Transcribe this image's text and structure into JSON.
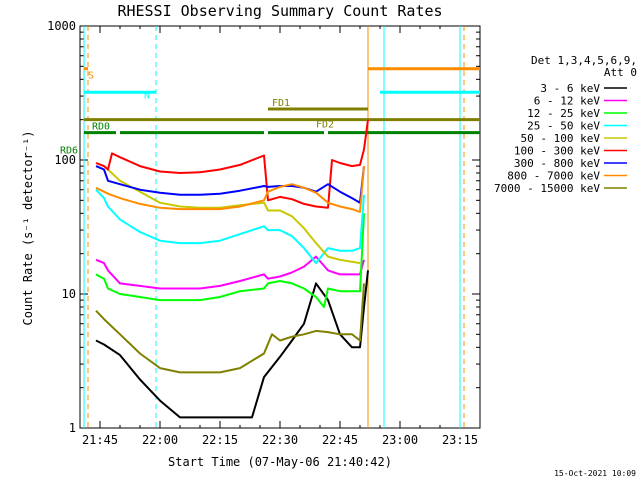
{
  "chart_data": {
    "type": "line",
    "title": "RHESSI Observing Summary Count Rates",
    "xlabel": "Start Time (07-May-06 21:40:42)",
    "ylabel": "Count Rate (s⁻¹ detector⁻¹)",
    "ylog": true,
    "ylim": [
      1,
      1000
    ],
    "xlim": [
      "21:40",
      "23:20"
    ],
    "x_ticks": [
      "21:45",
      "22:00",
      "22:15",
      "22:30",
      "22:45",
      "23:00",
      "23:15"
    ],
    "y_ticks": [
      "1",
      "10",
      "100",
      "1000"
    ],
    "legend_title": [
      "Det 1,3,4,5,6,9,",
      "Att 0"
    ],
    "legend_position": "right",
    "series": [
      {
        "name": "3 - 6 keV",
        "color": "#000000",
        "x": [
          "21:44",
          "21:46",
          "21:50",
          "21:55",
          "22:00",
          "22:05",
          "22:10",
          "22:15",
          "22:20",
          "22:23",
          "22:26",
          "22:30",
          "22:33",
          "22:36",
          "22:39",
          "22:42",
          "22:45",
          "22:48",
          "22:50",
          "22:51",
          "22:52"
        ],
        "y": [
          4.5,
          4.2,
          3.5,
          2.3,
          1.6,
          1.2,
          1.2,
          1.2,
          1.2,
          1.2,
          2.4,
          3.4,
          4.5,
          6,
          12,
          9,
          5,
          4,
          4,
          8,
          15
        ]
      },
      {
        "name": "6 - 12 keV",
        "color": "#ff00ff",
        "x": [
          "21:44",
          "21:46",
          "21:47",
          "21:50",
          "21:55",
          "22:00",
          "22:05",
          "22:10",
          "22:15",
          "22:20",
          "22:26",
          "22:27",
          "22:30",
          "22:33",
          "22:36",
          "22:39",
          "22:42",
          "22:45",
          "22:48",
          "22:50",
          "22:51"
        ],
        "y": [
          18,
          17,
          15,
          12,
          11.5,
          11,
          11,
          11,
          11.5,
          12.5,
          14,
          13,
          13.5,
          14.5,
          16,
          19,
          15,
          14,
          14,
          14,
          18
        ]
      },
      {
        "name": "12 - 25 keV",
        "color": "#00ff00",
        "x": [
          "21:44",
          "21:46",
          "21:47",
          "21:50",
          "21:55",
          "22:00",
          "22:05",
          "22:10",
          "22:15",
          "22:20",
          "22:26",
          "22:27",
          "22:30",
          "22:33",
          "22:36",
          "22:39",
          "22:41",
          "22:42",
          "22:45",
          "22:48",
          "22:50",
          "22:51"
        ],
        "y": [
          14,
          13,
          11,
          10,
          9.5,
          9,
          9,
          9,
          9.5,
          10.5,
          11,
          12,
          12.5,
          12,
          11,
          9.5,
          8,
          11,
          10.5,
          10.5,
          10.5,
          40
        ]
      },
      {
        "name": "25 - 50 keV",
        "color": "#00ffff",
        "x": [
          "21:44",
          "21:46",
          "21:47",
          "21:50",
          "21:55",
          "22:00",
          "22:05",
          "22:10",
          "22:15",
          "22:20",
          "22:26",
          "22:27",
          "22:30",
          "22:33",
          "22:36",
          "22:39",
          "22:42",
          "22:45",
          "22:48",
          "22:50",
          "22:51"
        ],
        "y": [
          60,
          52,
          45,
          36,
          29,
          25,
          24,
          24,
          25,
          28,
          32,
          30,
          30,
          27,
          22,
          17,
          22,
          21,
          21,
          22,
          55
        ]
      },
      {
        "name": "50 - 100 keV",
        "color": "#c8c800",
        "x": [
          "21:44",
          "21:46",
          "21:47",
          "21:50",
          "21:55",
          "22:00",
          "22:05",
          "22:10",
          "22:15",
          "22:20",
          "22:26",
          "22:27",
          "22:30",
          "22:33",
          "22:36",
          "22:39",
          "22:42",
          "22:45",
          "22:50"
        ],
        "y": [
          95,
          90,
          85,
          70,
          58,
          48,
          45,
          44,
          44,
          46,
          48,
          42,
          42,
          38,
          31,
          24,
          19,
          18,
          17
        ]
      },
      {
        "name": "100 - 300 keV",
        "color": "#ff0000",
        "x": [
          "21:44",
          "21:46",
          "21:47",
          "21:48",
          "21:50",
          "21:55",
          "22:00",
          "22:05",
          "22:10",
          "22:15",
          "22:20",
          "22:26",
          "22:27",
          "22:30",
          "22:33",
          "22:36",
          "22:39",
          "22:42",
          "22:43",
          "22:45",
          "22:48",
          "22:50",
          "22:51",
          "22:52"
        ],
        "y": [
          95,
          90,
          85,
          112,
          105,
          90,
          82,
          80,
          81,
          85,
          92,
          108,
          50,
          53,
          51,
          47,
          45,
          44,
          100,
          95,
          90,
          92,
          120,
          200
        ]
      },
      {
        "name": "300 - 800 keV",
        "color": "#0000ff",
        "x": [
          "21:44",
          "21:46",
          "21:47",
          "21:50",
          "21:55",
          "22:00",
          "22:05",
          "22:10",
          "22:15",
          "22:20",
          "22:26",
          "22:27",
          "22:30",
          "22:33",
          "22:36",
          "22:39",
          "22:42",
          "22:45",
          "22:48",
          "22:50",
          "22:51"
        ],
        "y": [
          90,
          85,
          70,
          66,
          60,
          57,
          55,
          55,
          56,
          59,
          64,
          63,
          64,
          64,
          62,
          58,
          66,
          58,
          52,
          48,
          90
        ]
      },
      {
        "name": "800 - 7000 keV",
        "color": "#ff8c00",
        "x": [
          "21:44",
          "21:46",
          "21:47",
          "21:50",
          "21:55",
          "22:00",
          "22:05",
          "22:10",
          "22:15",
          "22:20",
          "22:26",
          "22:27",
          "22:30",
          "22:33",
          "22:36",
          "22:39",
          "22:42",
          "22:45",
          "22:48",
          "22:50",
          "22:51"
        ],
        "y": [
          62,
          58,
          56,
          52,
          47,
          44,
          43,
          43,
          43,
          45,
          50,
          58,
          63,
          66,
          62,
          57,
          48,
          45,
          43,
          41,
          90
        ]
      },
      {
        "name": "7000 - 15000 keV",
        "color": "#808000",
        "x": [
          "21:44",
          "21:46",
          "21:50",
          "21:55",
          "22:00",
          "22:05",
          "22:10",
          "22:15",
          "22:20",
          "22:26",
          "22:28",
          "22:30",
          "22:33",
          "22:36",
          "22:39",
          "22:42",
          "22:45",
          "22:48",
          "22:50",
          "22:51"
        ],
        "y": [
          7.5,
          6.5,
          5,
          3.6,
          2.8,
          2.6,
          2.6,
          2.6,
          2.8,
          3.6,
          5,
          4.5,
          4.8,
          5,
          5.3,
          5.2,
          5,
          5,
          4.5,
          12
        ]
      }
    ],
    "status_bars": [
      {
        "label": "S",
        "color": "#ff8c00",
        "segments": [
          [
            "21:41",
            "21:42"
          ],
          [
            "22:52",
            "23:20"
          ]
        ],
        "level": 480
      },
      {
        "label": "N",
        "color": "#00ffff",
        "segments": [
          [
            "21:41",
            "21:59"
          ],
          [
            "22:55",
            "23:20"
          ]
        ],
        "level": 320
      },
      {
        "label": "FD1",
        "color": "#808000",
        "segments": [
          [
            "22:27",
            "22:52"
          ]
        ],
        "level": 240
      },
      {
        "label": "FD2",
        "color": "#808000",
        "segments": [
          [
            "21:41",
            "23:20"
          ]
        ],
        "level": 200
      },
      {
        "label": "RD0",
        "color": "#008000",
        "segments": [
          [
            "21:41",
            "21:49"
          ],
          [
            "21:50",
            "22:26"
          ],
          [
            "22:27",
            "22:41"
          ],
          [
            "22:42",
            "23:20"
          ]
        ],
        "level": 160
      },
      {
        "label": "RD6",
        "color": "#008000",
        "segments": [],
        "level": 120
      }
    ],
    "vertical_lines": [
      {
        "x": "21:41",
        "color": "#00ffff",
        "style": "solid"
      },
      {
        "x": "21:42",
        "color": "#ff8c00",
        "style": "dashed"
      },
      {
        "x": "21:59",
        "color": "#00ffff",
        "style": "dashed"
      },
      {
        "x": "22:52",
        "color": "#ff8c00",
        "style": "solid"
      },
      {
        "x": "22:56",
        "color": "#00ffff",
        "style": "solid"
      },
      {
        "x": "23:15",
        "color": "#00ffff",
        "style": "solid"
      },
      {
        "x": "23:16",
        "color": "#ff8c00",
        "style": "dashed"
      }
    ]
  },
  "timestamp": "15-Oct-2021 10:09"
}
